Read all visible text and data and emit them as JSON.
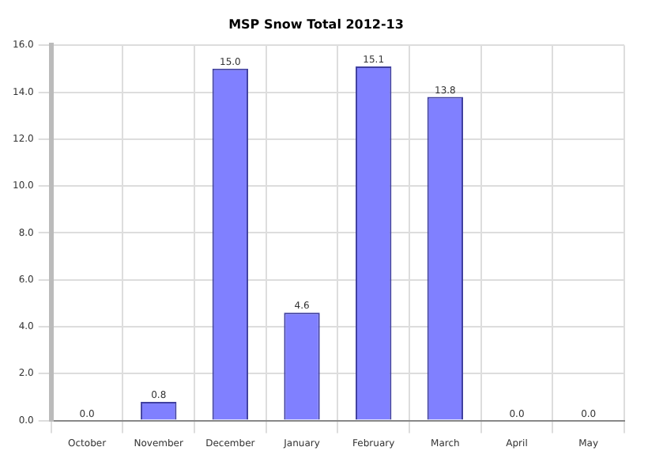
{
  "chart_data": {
    "type": "bar",
    "title": "MSP Snow Total 2012-13",
    "categories": [
      "October",
      "November",
      "December",
      "January",
      "February",
      "March",
      "April",
      "May"
    ],
    "values": [
      0.0,
      0.8,
      15.0,
      4.6,
      15.1,
      13.8,
      0.0,
      0.0
    ],
    "value_labels": [
      "0.0",
      "0.8",
      "15.0",
      "4.6",
      "15.1",
      "13.8",
      "0.0",
      "0.0"
    ],
    "color": "#8080ff",
    "ylim": [
      0,
      16
    ],
    "yticks": [
      {
        "value": 0,
        "label": "0.0"
      },
      {
        "value": 2,
        "label": "2.0"
      },
      {
        "value": 4,
        "label": "4.0"
      },
      {
        "value": 6,
        "label": "6.0"
      },
      {
        "value": 8,
        "label": "8.0"
      },
      {
        "value": 10,
        "label": "10.0"
      },
      {
        "value": 12,
        "label": "12.0"
      },
      {
        "value": 14,
        "label": "14.0"
      },
      {
        "value": 16,
        "label": "16.0"
      }
    ],
    "grid": true,
    "legend": false
  }
}
